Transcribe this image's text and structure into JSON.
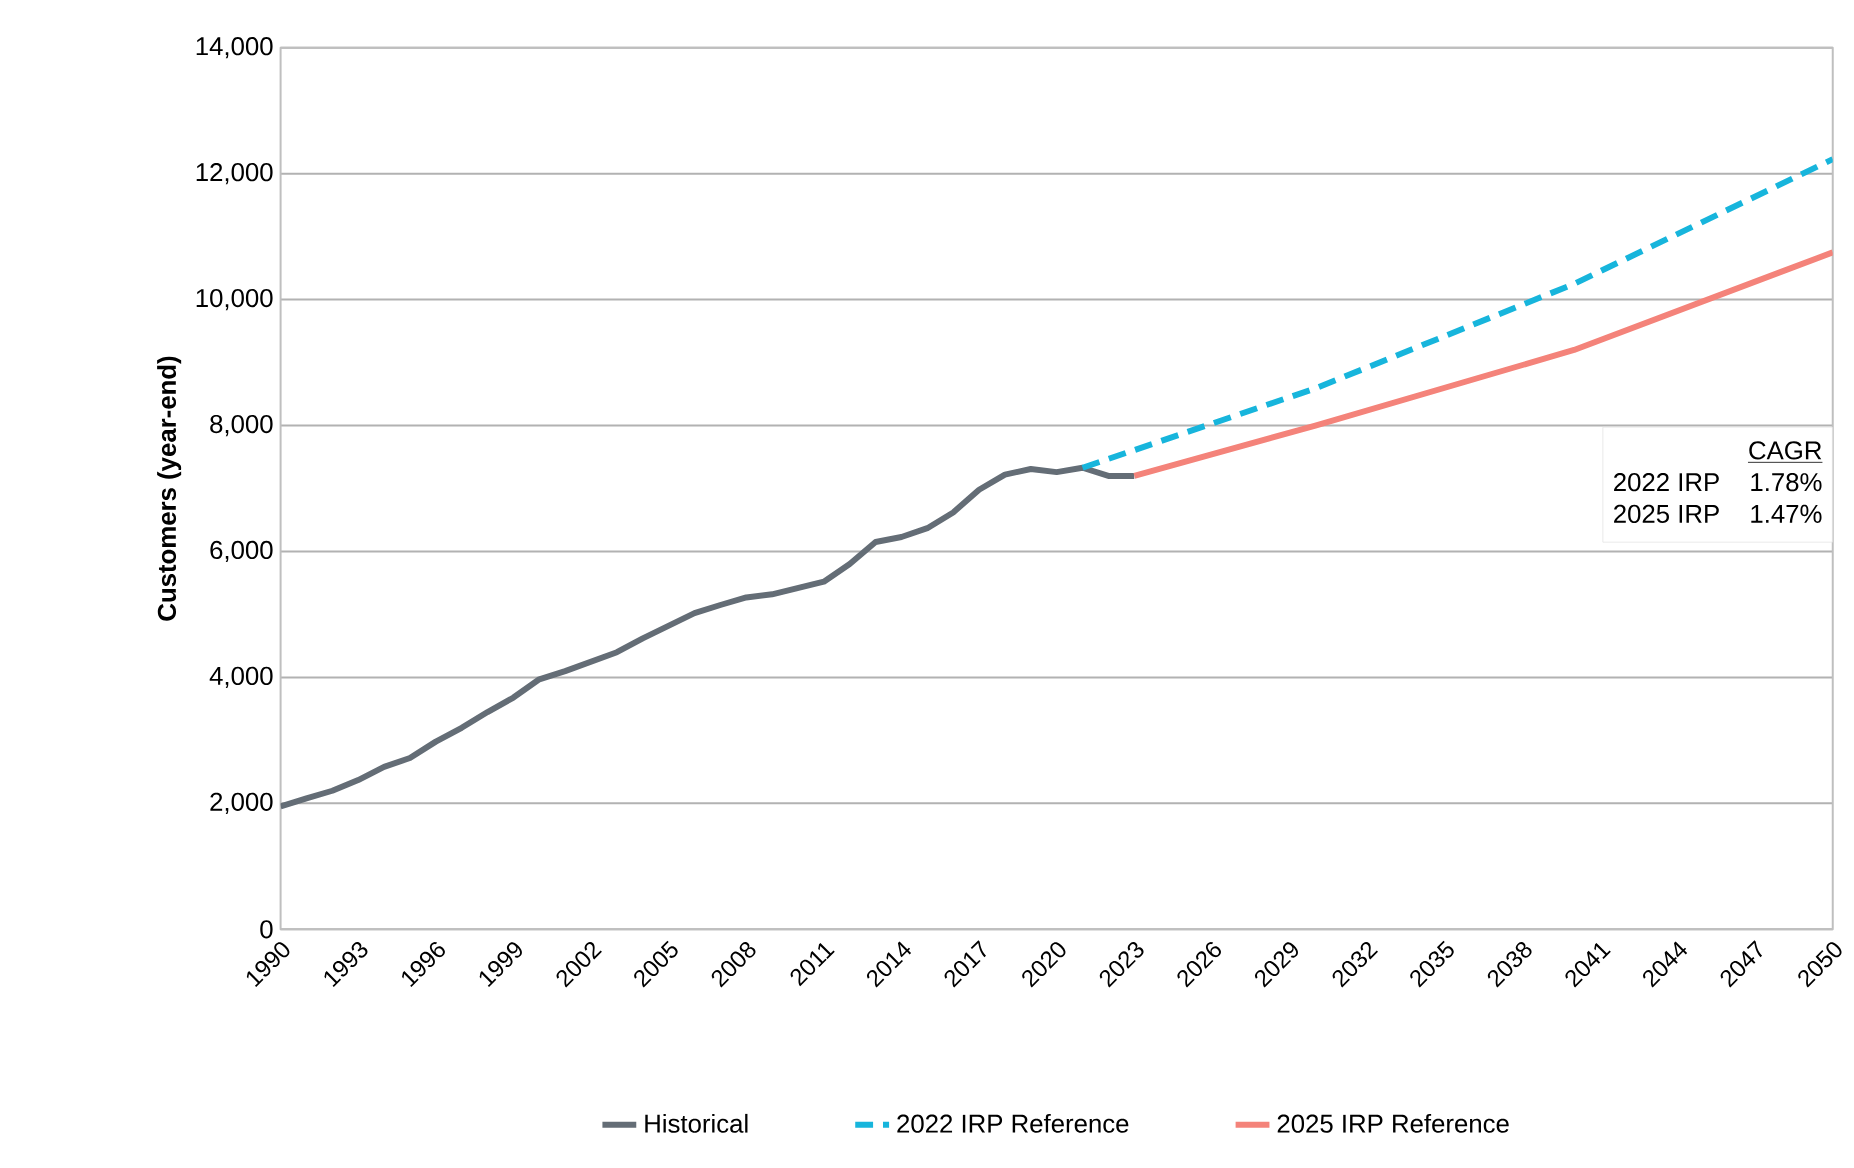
{
  "chart_data": {
    "type": "line",
    "ylabel": "Customers (year-end)",
    "x": [
      1990,
      1991,
      1992,
      1993,
      1994,
      1995,
      1996,
      1997,
      1998,
      1999,
      2000,
      2001,
      2002,
      2003,
      2004,
      2005,
      2006,
      2007,
      2008,
      2009,
      2010,
      2011,
      2012,
      2013,
      2014,
      2015,
      2016,
      2017,
      2018,
      2019,
      2020,
      2021,
      2022,
      2023
    ],
    "series": [
      {
        "name": "Historical",
        "color": "#646d76",
        "line_style": "solid",
        "values": [
          1950,
          2080,
          2200,
          2370,
          2580,
          2720,
          2980,
          3200,
          3450,
          3680,
          3970,
          4100,
          4250,
          4400,
          4620,
          4820,
          5020,
          5150,
          5270,
          5320,
          5420,
          5520,
          5800,
          6150,
          6230,
          6370,
          6620,
          6980,
          7220,
          7310,
          7260,
          7330,
          7200,
          7200
        ]
      },
      {
        "name": "2022 IRP Reference",
        "color": "#17b5dc",
        "line_style": "dashed",
        "x": [
          2021,
          2030,
          2040,
          2050
        ],
        "values": [
          7330,
          8590,
          10250,
          12230
        ]
      },
      {
        "name": "2025 IRP Reference",
        "color": "#f4837a",
        "line_style": "solid",
        "x": [
          2023,
          2030,
          2040,
          2050
        ],
        "values": [
          7200,
          8000,
          9200,
          10750
        ]
      }
    ],
    "xlim": [
      1990,
      2050
    ],
    "xticks": [
      1990,
      1993,
      1996,
      1999,
      2002,
      2005,
      2008,
      2011,
      2014,
      2017,
      2020,
      2023,
      2026,
      2029,
      2032,
      2035,
      2038,
      2041,
      2044,
      2047,
      2050
    ],
    "ylim": [
      0,
      14000
    ],
    "yticks": [
      0,
      {
        "value": 2000,
        "label": "2,000"
      },
      {
        "value": 4000,
        "label": "4,000"
      },
      {
        "value": 6000,
        "label": "6,000"
      },
      {
        "value": 8000,
        "label": "8,000"
      },
      {
        "value": 10000,
        "label": "10,000"
      },
      {
        "value": 12000,
        "label": "12,000"
      },
      {
        "value": 14000,
        "label": "14,000"
      }
    ],
    "grid": "y",
    "legend": "bottom",
    "marker": "none",
    "annotations": [
      "CAGR",
      "2022 IRP",
      "1.78%",
      "2025 IRP",
      "1.47%"
    ]
  }
}
